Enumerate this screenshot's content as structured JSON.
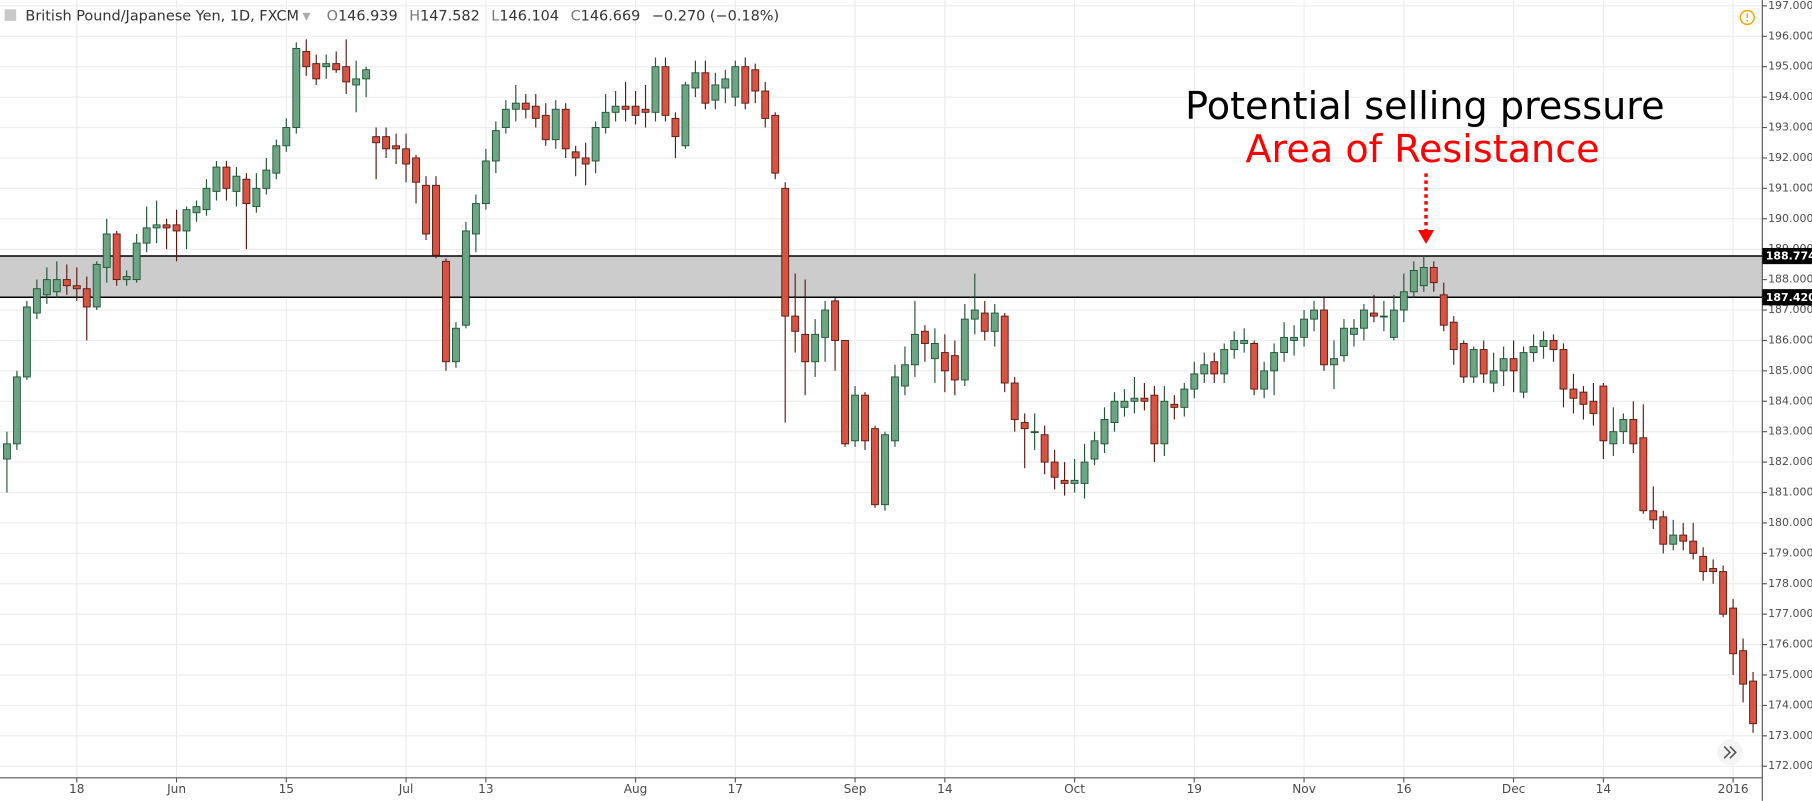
{
  "chart_data": {
    "type": "candlestick",
    "title": "British Pound/Japanese Yen, 1D, FXCM",
    "legend_values": [
      {
        "key": "O",
        "value": "146.939"
      },
      {
        "key": "H",
        "value": "147.582"
      },
      {
        "key": "L",
        "value": "146.104"
      },
      {
        "key": "C",
        "value": "146.669"
      }
    ],
    "change": "−0.270 (−0.18%)",
    "annotations": [
      "Potential selling pressure",
      "Area of Resistance"
    ],
    "zone": [
      188.774,
      {
        "value": 187.42,
        "label": "187.420"
      }
    ],
    "up_color": "#6ba583",
    "down_color": "#d75442",
    "grid": true,
    "ylim": [
      171.62,
      197.19
    ],
    "yticks": [
      {
        "value": 172,
        "label": "172.000"
      },
      {
        "value": 173,
        "label": "173.000"
      },
      {
        "value": 174,
        "label": "174.000"
      },
      {
        "value": 175,
        "label": "175.000"
      },
      {
        "value": 176,
        "label": "176.000"
      },
      {
        "value": 177,
        "label": "177.000"
      },
      {
        "value": 178,
        "label": "178.000"
      },
      {
        "value": 179,
        "label": "179.000"
      },
      {
        "value": 180,
        "label": "180.000"
      },
      {
        "value": 181,
        "label": "181.000"
      },
      {
        "value": 182,
        "label": "182.000"
      },
      {
        "value": 183,
        "label": "183.000"
      },
      {
        "value": 184,
        "label": "184.000"
      },
      {
        "value": 185,
        "label": "185.000"
      },
      {
        "value": 186,
        "label": "186.000"
      },
      {
        "value": 187,
        "label": "187.000"
      },
      {
        "value": 188,
        "label": "188.000"
      },
      {
        "value": 189,
        "label": "189.000"
      },
      {
        "value": 190,
        "label": "190.000"
      },
      {
        "value": 191,
        "label": "191.000"
      },
      {
        "value": 192,
        "label": "192.000"
      },
      {
        "value": 193,
        "label": "193.000"
      },
      {
        "value": 194,
        "label": "194.000"
      },
      {
        "value": 195,
        "label": "195.000"
      },
      {
        "value": 196,
        "label": "196.000"
      },
      {
        "value": 197,
        "label": "197.000"
      }
    ],
    "categories": [
      null,
      null,
      null,
      null,
      null,
      null,
      null,
      "18",
      null,
      null,
      null,
      null,
      null,
      null,
      null,
      null,
      null,
      "Jun",
      null,
      null,
      null,
      null,
      null,
      null,
      null,
      null,
      null,
      null,
      "15",
      null,
      null,
      null,
      null,
      null,
      null,
      null,
      null,
      null,
      null,
      null,
      "Jul",
      null,
      null,
      null,
      null,
      null,
      null,
      null,
      "13",
      null,
      null,
      null,
      null,
      null,
      null,
      null,
      null,
      null,
      null,
      null,
      null,
      null,
      null,
      "Aug",
      null,
      null,
      null,
      null,
      null,
      null,
      null,
      null,
      null,
      "17",
      null,
      null,
      null,
      null,
      null,
      null,
      null,
      null,
      null,
      null,
      null,
      "Sep",
      null,
      null,
      null,
      null,
      null,
      null,
      null,
      null,
      "14",
      null,
      null,
      null,
      null,
      null,
      null,
      null,
      null,
      null,
      null,
      null,
      null,
      "Oct",
      null,
      null,
      null,
      null,
      null,
      null,
      null,
      null,
      null,
      null,
      null,
      "19",
      null,
      null,
      null,
      null,
      null,
      null,
      null,
      null,
      null,
      null,
      "Nov",
      null,
      null,
      null,
      null,
      null,
      null,
      null,
      null,
      null,
      "16",
      null,
      null,
      null,
      null,
      null,
      null,
      null,
      null,
      null,
      null,
      "Dec",
      null,
      null,
      null,
      null,
      null,
      null,
      null,
      null,
      "14",
      null,
      null,
      null,
      null,
      null,
      null,
      null,
      null,
      null,
      null,
      null,
      null,
      "2016",
      null,
      null
    ],
    "candles": [
      [
        182.1,
        183.0,
        181.0,
        182.6
      ],
      [
        182.6,
        185.0,
        182.4,
        184.8
      ],
      [
        184.8,
        187.3,
        184.7,
        187.1
      ],
      [
        186.9,
        188.0,
        186.7,
        187.7
      ],
      [
        187.5,
        188.4,
        187.2,
        188.0
      ],
      [
        187.6,
        188.6,
        187.4,
        188.0
      ],
      [
        188.0,
        188.5,
        187.5,
        187.8
      ],
      [
        187.8,
        188.4,
        187.3,
        187.7
      ],
      [
        187.7,
        188.1,
        186.0,
        187.1
      ],
      [
        187.1,
        188.6,
        187.0,
        188.5
      ],
      [
        188.4,
        190.0,
        187.9,
        189.5
      ],
      [
        189.5,
        189.6,
        187.8,
        188.0
      ],
      [
        188.0,
        188.3,
        187.8,
        188.1
      ],
      [
        188.0,
        189.5,
        187.9,
        189.2
      ],
      [
        189.2,
        190.4,
        188.9,
        189.7
      ],
      [
        189.7,
        190.6,
        189.2,
        189.8
      ],
      [
        189.8,
        190.0,
        189.0,
        189.7
      ],
      [
        189.8,
        190.3,
        188.6,
        189.6
      ],
      [
        189.6,
        190.4,
        189.0,
        190.3
      ],
      [
        190.2,
        190.6,
        189.9,
        190.4
      ],
      [
        190.3,
        191.3,
        190.1,
        191.0
      ],
      [
        190.9,
        191.9,
        190.6,
        191.7
      ],
      [
        191.7,
        191.9,
        190.6,
        191.0
      ],
      [
        190.9,
        191.7,
        190.4,
        191.4
      ],
      [
        191.3,
        191.5,
        189.0,
        190.5
      ],
      [
        190.4,
        191.5,
        190.2,
        191.0
      ],
      [
        191.0,
        192.0,
        190.8,
        191.6
      ],
      [
        191.5,
        192.6,
        191.3,
        192.4
      ],
      [
        192.4,
        193.3,
        192.2,
        193.0
      ],
      [
        193.0,
        195.8,
        192.8,
        195.6
      ],
      [
        195.5,
        195.9,
        194.7,
        195.0
      ],
      [
        195.1,
        195.4,
        194.4,
        194.6
      ],
      [
        195.0,
        195.4,
        194.6,
        195.1
      ],
      [
        195.1,
        195.5,
        194.8,
        194.9
      ],
      [
        195.0,
        195.9,
        194.1,
        194.5
      ],
      [
        194.4,
        195.2,
        193.5,
        194.6
      ],
      [
        194.6,
        195.0,
        194.0,
        194.9
      ],
      [
        192.7,
        193.0,
        191.3,
        192.5
      ],
      [
        192.7,
        193.0,
        192.0,
        192.3
      ],
      [
        192.4,
        192.8,
        191.8,
        192.3
      ],
      [
        192.3,
        192.8,
        191.2,
        191.8
      ],
      [
        192.0,
        192.1,
        190.5,
        191.2
      ],
      [
        191.1,
        191.4,
        189.3,
        189.5
      ],
      [
        191.1,
        191.4,
        188.7,
        188.8
      ],
      [
        188.6,
        188.7,
        185.0,
        185.3
      ],
      [
        185.3,
        186.6,
        185.1,
        186.4
      ],
      [
        186.5,
        189.9,
        186.4,
        189.6
      ],
      [
        189.5,
        190.8,
        188.9,
        190.5
      ],
      [
        190.5,
        192.3,
        190.3,
        191.9
      ],
      [
        191.9,
        193.2,
        191.5,
        192.9
      ],
      [
        193.0,
        193.9,
        192.8,
        193.6
      ],
      [
        193.6,
        194.4,
        193.2,
        193.8
      ],
      [
        193.8,
        194.1,
        193.3,
        193.6
      ],
      [
        193.7,
        194.1,
        193.0,
        193.3
      ],
      [
        193.4,
        193.8,
        192.4,
        192.6
      ],
      [
        192.6,
        193.9,
        192.3,
        193.6
      ],
      [
        193.6,
        193.8,
        192.0,
        192.3
      ],
      [
        192.2,
        192.4,
        191.4,
        192.0
      ],
      [
        192.0,
        192.5,
        191.1,
        191.8
      ],
      [
        191.9,
        193.2,
        191.5,
        193.0
      ],
      [
        193.0,
        194.1,
        192.8,
        193.5
      ],
      [
        193.5,
        194.2,
        193.2,
        193.7
      ],
      [
        193.7,
        194.5,
        193.2,
        193.6
      ],
      [
        193.7,
        194.2,
        193.1,
        193.4
      ],
      [
        193.6,
        194.4,
        193.0,
        193.5
      ],
      [
        193.5,
        195.3,
        193.2,
        195.0
      ],
      [
        195.0,
        195.3,
        193.2,
        193.4
      ],
      [
        193.3,
        193.5,
        192.0,
        192.7
      ],
      [
        192.4,
        194.5,
        192.3,
        194.4
      ],
      [
        194.3,
        195.2,
        194.0,
        194.8
      ],
      [
        194.8,
        195.2,
        193.6,
        193.8
      ],
      [
        193.9,
        194.8,
        193.6,
        194.4
      ],
      [
        194.3,
        194.9,
        193.8,
        194.6
      ],
      [
        194.0,
        195.2,
        193.7,
        195.0
      ],
      [
        195.0,
        195.3,
        193.6,
        193.8
      ],
      [
        194.9,
        195.1,
        193.8,
        194.2
      ],
      [
        194.2,
        194.5,
        193.0,
        193.3
      ],
      [
        193.4,
        193.5,
        191.3,
        191.5
      ],
      [
        191.0,
        191.2,
        183.3,
        186.8
      ],
      [
        186.8,
        188.2,
        185.6,
        186.3
      ],
      [
        186.2,
        188.0,
        184.2,
        185.3
      ],
      [
        185.3,
        186.7,
        184.8,
        186.2
      ],
      [
        186.1,
        187.3,
        185.3,
        187.0
      ],
      [
        187.3,
        187.4,
        185.0,
        186.0
      ],
      [
        186.0,
        186.0,
        182.5,
        182.6
      ],
      [
        182.7,
        184.5,
        182.5,
        184.2
      ],
      [
        184.2,
        184.3,
        182.4,
        182.7
      ],
      [
        183.1,
        183.2,
        180.5,
        180.6
      ],
      [
        180.6,
        183.0,
        180.4,
        182.9
      ],
      [
        182.7,
        185.2,
        182.5,
        184.8
      ],
      [
        184.5,
        185.8,
        184.2,
        185.2
      ],
      [
        185.2,
        187.3,
        184.8,
        186.2
      ],
      [
        186.3,
        186.5,
        185.3,
        185.9
      ],
      [
        185.4,
        186.4,
        184.6,
        185.9
      ],
      [
        185.6,
        186.2,
        184.3,
        185.0
      ],
      [
        185.5,
        186.0,
        184.2,
        184.7
      ],
      [
        184.7,
        187.2,
        184.5,
        186.7
      ],
      [
        186.7,
        188.2,
        186.2,
        187.0
      ],
      [
        186.9,
        187.3,
        186.0,
        186.3
      ],
      [
        186.3,
        187.2,
        185.8,
        186.9
      ],
      [
        186.8,
        186.9,
        184.3,
        184.6
      ],
      [
        184.6,
        184.8,
        183.0,
        183.4
      ],
      [
        183.3,
        183.6,
        181.8,
        183.1
      ],
      [
        183.0,
        183.6,
        182.4,
        183.0
      ],
      [
        182.9,
        183.2,
        181.6,
        182.0
      ],
      [
        182.0,
        182.4,
        181.1,
        181.5
      ],
      [
        181.4,
        182.0,
        180.9,
        181.3
      ],
      [
        181.3,
        182.1,
        181.0,
        181.4
      ],
      [
        181.3,
        182.6,
        180.8,
        182.0
      ],
      [
        182.1,
        183.0,
        181.9,
        182.7
      ],
      [
        182.6,
        183.8,
        182.3,
        183.4
      ],
      [
        183.3,
        184.3,
        183.0,
        184.0
      ],
      [
        183.8,
        184.4,
        183.5,
        184.0
      ],
      [
        184.0,
        184.8,
        183.6,
        184.1
      ],
      [
        184.1,
        184.6,
        183.7,
        184.0
      ],
      [
        184.2,
        184.5,
        182.0,
        182.6
      ],
      [
        182.6,
        184.5,
        182.2,
        184.0
      ],
      [
        183.9,
        184.2,
        183.4,
        183.8
      ],
      [
        183.8,
        184.6,
        183.5,
        184.4
      ],
      [
        184.4,
        185.3,
        184.1,
        184.9
      ],
      [
        184.9,
        185.6,
        184.6,
        185.2
      ],
      [
        185.3,
        185.6,
        184.6,
        184.9
      ],
      [
        184.9,
        185.9,
        184.6,
        185.7
      ],
      [
        185.7,
        186.3,
        185.4,
        186.0
      ],
      [
        185.9,
        186.4,
        185.6,
        186.0
      ],
      [
        185.9,
        186.0,
        184.2,
        184.4
      ],
      [
        184.4,
        185.3,
        184.1,
        185.0
      ],
      [
        185.0,
        185.9,
        184.2,
        185.6
      ],
      [
        185.6,
        186.6,
        185.3,
        186.1
      ],
      [
        186.0,
        186.5,
        185.5,
        186.1
      ],
      [
        186.1,
        187.0,
        185.8,
        186.7
      ],
      [
        186.7,
        187.3,
        186.3,
        187.0
      ],
      [
        187.0,
        187.4,
        185.0,
        185.2
      ],
      [
        185.2,
        186.0,
        184.4,
        185.4
      ],
      [
        185.5,
        186.7,
        185.3,
        186.4
      ],
      [
        186.2,
        186.7,
        185.8,
        186.4
      ],
      [
        186.4,
        187.2,
        186.0,
        187.0
      ],
      [
        186.9,
        187.5,
        186.6,
        186.8
      ],
      [
        186.8,
        187.3,
        186.3,
        186.8
      ],
      [
        186.1,
        187.5,
        186.0,
        187.0
      ],
      [
        187.0,
        188.2,
        186.6,
        187.6
      ],
      [
        187.6,
        188.6,
        187.4,
        188.3
      ],
      [
        187.8,
        188.8,
        187.6,
        188.4
      ],
      [
        188.4,
        188.6,
        187.6,
        187.9
      ],
      [
        187.5,
        187.9,
        186.3,
        186.5
      ],
      [
        186.6,
        186.8,
        185.2,
        185.7
      ],
      [
        185.9,
        186.0,
        184.6,
        184.8
      ],
      [
        184.8,
        185.8,
        184.6,
        185.7
      ],
      [
        185.7,
        186.0,
        184.6,
        184.9
      ],
      [
        184.6,
        185.6,
        184.3,
        185.0
      ],
      [
        185.0,
        185.8,
        184.5,
        185.4
      ],
      [
        185.4,
        186.0,
        184.3,
        185.0
      ],
      [
        184.3,
        185.8,
        184.1,
        185.6
      ],
      [
        185.6,
        186.2,
        185.3,
        185.8
      ],
      [
        185.8,
        186.3,
        185.4,
        186.0
      ],
      [
        186.0,
        186.2,
        185.3,
        185.7
      ],
      [
        185.7,
        185.9,
        183.8,
        184.4
      ],
      [
        184.4,
        184.9,
        183.6,
        184.1
      ],
      [
        184.3,
        184.5,
        183.4,
        183.9
      ],
      [
        184.0,
        184.6,
        183.2,
        183.6
      ],
      [
        184.5,
        184.6,
        182.1,
        182.7
      ],
      [
        182.6,
        183.8,
        182.2,
        183.0
      ],
      [
        183.0,
        183.6,
        182.6,
        183.4
      ],
      [
        183.4,
        184.0,
        182.3,
        182.6
      ],
      [
        182.8,
        183.9,
        180.3,
        180.4
      ],
      [
        180.4,
        181.2,
        179.8,
        180.1
      ],
      [
        180.2,
        180.4,
        179.0,
        179.3
      ],
      [
        179.3,
        180.1,
        179.1,
        179.6
      ],
      [
        179.6,
        180.0,
        179.1,
        179.4
      ],
      [
        179.4,
        180.0,
        178.8,
        179.0
      ],
      [
        178.9,
        179.2,
        178.1,
        178.4
      ],
      [
        178.5,
        178.8,
        178.0,
        178.4
      ],
      [
        178.4,
        178.6,
        176.9,
        177.0
      ],
      [
        177.2,
        177.5,
        175.0,
        175.7
      ],
      [
        175.8,
        176.2,
        174.1,
        174.7
      ],
      [
        174.8,
        175.1,
        173.1,
        173.4
      ]
    ]
  }
}
